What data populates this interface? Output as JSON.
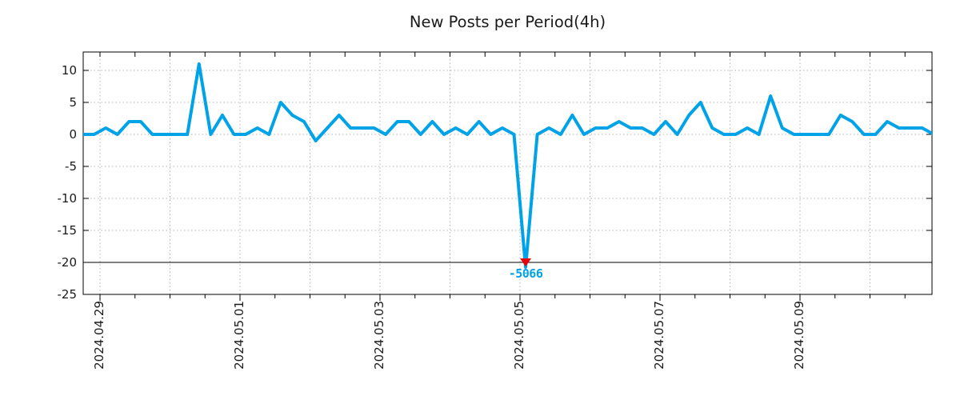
{
  "chart_data": {
    "type": "line",
    "title": "New Posts per Period(4h)",
    "period_hours": 4,
    "values": [
      0,
      0,
      1,
      0,
      2,
      2,
      0,
      0,
      0,
      0,
      11,
      0,
      3,
      0,
      0,
      1,
      0,
      5,
      3,
      2,
      -1,
      1,
      3,
      1,
      1,
      1,
      0,
      2,
      2,
      0,
      2,
      0,
      1,
      0,
      2,
      0,
      1,
      0,
      -5066,
      0,
      1,
      0,
      3,
      0,
      1,
      1,
      2,
      1,
      1,
      0,
      2,
      0,
      3,
      5,
      1,
      0,
      0,
      1,
      0,
      6,
      1,
      0,
      0,
      0,
      0,
      3,
      2,
      0,
      0,
      2,
      1,
      1,
      1,
      0
    ],
    "x_ticks": [
      {
        "label": "2024.04.29",
        "day": 0
      },
      {
        "label": "2024.05.01",
        "day": 2
      },
      {
        "label": "2024.05.03",
        "day": 4
      },
      {
        "label": "2024.05.05",
        "day": 6
      },
      {
        "label": "2024.05.07",
        "day": 8
      },
      {
        "label": "2024.05.09",
        "day": 10
      }
    ],
    "grid_days": [
      0,
      1,
      2,
      3,
      4,
      5,
      6,
      7,
      8,
      9,
      10,
      11
    ],
    "y_ticks": [
      10,
      5,
      0,
      -5,
      -10,
      -15,
      -20,
      -25
    ],
    "ylim": [
      -25.4,
      12.9
    ],
    "grid_style": "dotted",
    "clip_line_value": -20,
    "annotation": {
      "text": "-5066",
      "value": -5066,
      "index": 38
    },
    "legend": null,
    "colors": {
      "line": "#00a2e8",
      "annotation_text": "#00a2e8",
      "marker": "#e8000b",
      "grid": "#b3b3b3",
      "axis": "#000000",
      "clip_line": "#000000",
      "title": "#1a1a1a",
      "tick_label": "#1a1a1a",
      "background": "#ffffff"
    }
  }
}
